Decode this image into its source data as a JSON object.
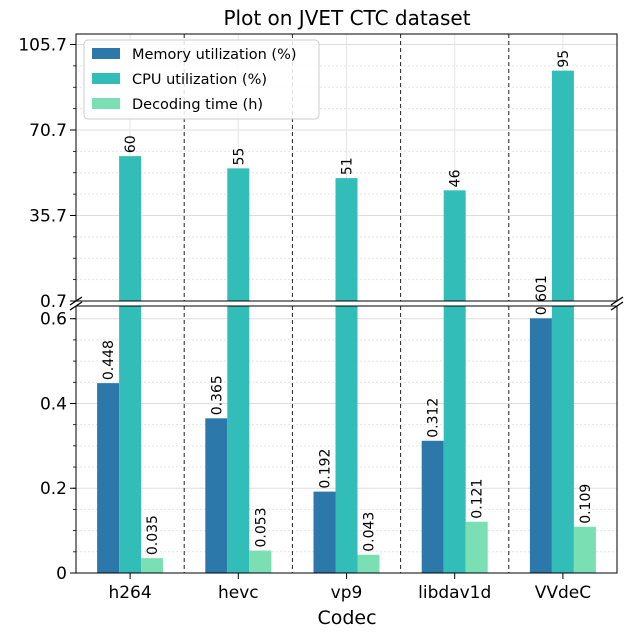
{
  "chart_data": {
    "type": "bar",
    "title": "Plot on JVET CTC dataset",
    "xlabel": "Codec",
    "ylabel": "",
    "categories": [
      "h264",
      "hevc",
      "vp9",
      "libdav1d",
      "VVdeC"
    ],
    "series": [
      {
        "name": "Memory utilization (%)",
        "color": "#2c78ab",
        "values": [
          0.448,
          0.365,
          0.192,
          0.312,
          0.601
        ],
        "labels": [
          "0.448",
          "0.365",
          "0.192",
          "0.312",
          "0.601"
        ]
      },
      {
        "name": "CPU utilization (%)",
        "color": "#33bdb8",
        "values": [
          60,
          55,
          51,
          46,
          95
        ],
        "labels": [
          "60",
          "55",
          "51",
          "46",
          "95"
        ]
      },
      {
        "name": "Decoding time (h)",
        "color": "#7adfb2",
        "values": [
          0.035,
          0.053,
          0.043,
          0.121,
          0.109
        ],
        "labels": [
          "0.035",
          "0.053",
          "0.043",
          "0.121",
          "0.109"
        ]
      }
    ],
    "broken_y_axis": true,
    "upper_ylim": [
      0.7,
      110
    ],
    "upper_yticks": [
      "0.7",
      "35.7",
      "70.7",
      "105.7"
    ],
    "lower_ylim": [
      0,
      0.63
    ],
    "lower_yticks": [
      "0",
      "0.2",
      "0.4",
      "0.6"
    ],
    "grid": true,
    "category_separators": "dashed",
    "legend_position": "top-left"
  }
}
